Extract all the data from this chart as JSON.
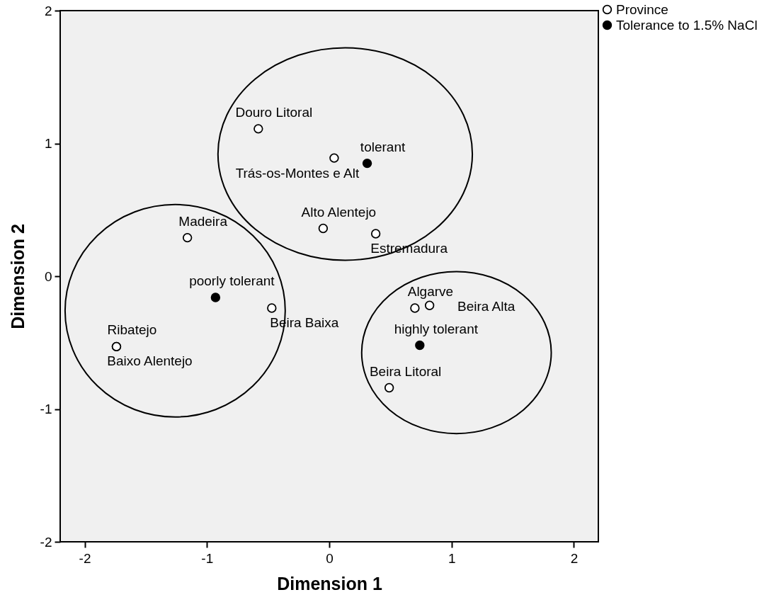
{
  "chart_data": {
    "type": "scatter",
    "xlabel": "Dimension 1",
    "ylabel": "Dimension 2",
    "xlim": [
      -2.2,
      2.2
    ],
    "ylim": [
      -2,
      2
    ],
    "xticks": [
      -2,
      -1,
      0,
      1,
      2
    ],
    "yticks": [
      -2,
      -1,
      0,
      1,
      2
    ],
    "grid": false,
    "legend": "top right",
    "marker": "circle",
    "series": [
      {
        "name": "Province",
        "color": "#ffffff",
        "x": [
          -0.58,
          0.04,
          -0.05,
          0.38,
          -1.16,
          -0.47,
          -1.74,
          -1.74,
          0.7,
          0.82,
          0.49
        ],
        "values": [
          1.11,
          0.89,
          0.36,
          0.32,
          0.29,
          -0.24,
          -0.53,
          -0.53,
          -0.24,
          -0.22,
          -0.84
        ]
      },
      {
        "name": "Tolerance to 1.5% NaCl",
        "color": "#000000",
        "x": [
          0.31,
          -0.93,
          0.74
        ],
        "values": [
          0.85,
          -0.16,
          -0.52
        ]
      }
    ],
    "annotations": [
      {
        "text": "Douro Litoral",
        "x": -0.58,
        "y": 1.11
      },
      {
        "text": "Trás-os-Montes e Alt",
        "x": 0.04,
        "y": 0.89
      },
      {
        "text": "Alto Alentejo",
        "x": -0.05,
        "y": 0.36
      },
      {
        "text": "Estremadura",
        "x": 0.38,
        "y": 0.32
      },
      {
        "text": "Madeira",
        "x": -1.16,
        "y": 0.29
      },
      {
        "text": "Beira Baixa",
        "x": -0.47,
        "y": -0.24
      },
      {
        "text": "Ribatejo",
        "x": -1.74,
        "y": -0.53
      },
      {
        "text": "Baixo Alentejo",
        "x": -1.74,
        "y": -0.53
      },
      {
        "text": "Algarve",
        "x": 0.7,
        "y": -0.24
      },
      {
        "text": "Beira Alta",
        "x": 0.82,
        "y": -0.22
      },
      {
        "text": "Beira Litoral",
        "x": 0.49,
        "y": -0.84
      },
      {
        "text": "tolerant",
        "x": 0.31,
        "y": 0.85
      },
      {
        "text": "poorly tolerant",
        "x": -0.93,
        "y": -0.16
      },
      {
        "text": "highly tolerant",
        "x": 0.74,
        "y": -0.52
      }
    ]
  }
}
